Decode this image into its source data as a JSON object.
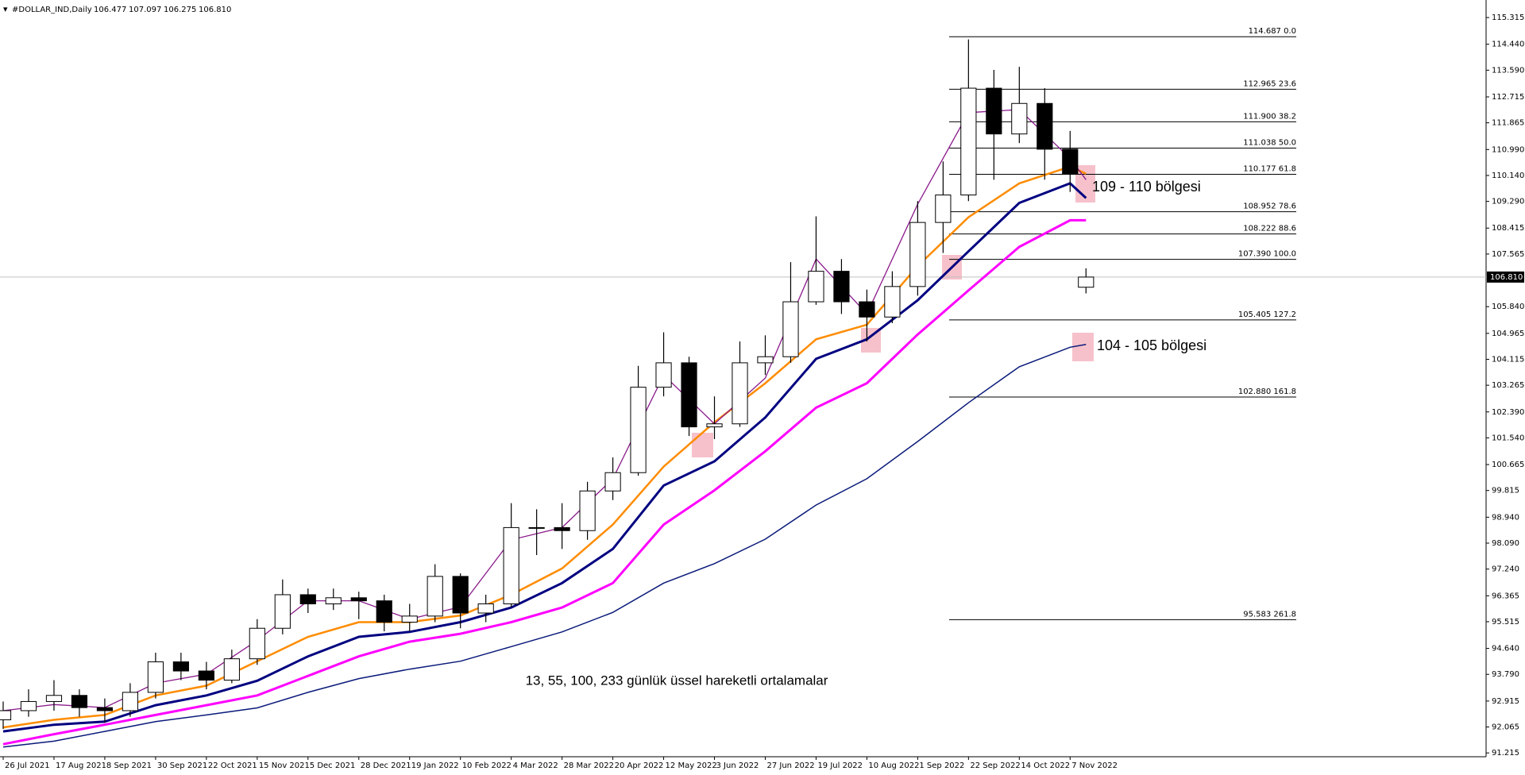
{
  "chart_data": {
    "type": "candlestick",
    "header": {
      "symbol": "#DOLLAR_IND,Daily",
      "values": [
        "106.477",
        "107.097",
        "106.275",
        "106.810"
      ]
    },
    "xlim": [
      -1,
      467
    ],
    "ylim": [
      91.09,
      115.89
    ],
    "xticks": [
      {
        "value": 0,
        "label": "26 Jul 2021"
      },
      {
        "value": 16,
        "label": "17 Aug 2021"
      },
      {
        "value": 32,
        "label": "8 Sep 2021"
      },
      {
        "value": 48,
        "label": "30 Sep 2021"
      },
      {
        "value": 64,
        "label": "22 Oct 2021"
      },
      {
        "value": 80,
        "label": "15 Nov 2021"
      },
      {
        "value": 96,
        "label": "5 Dec 2021"
      },
      {
        "value": 112,
        "label": "28 Dec 2021"
      },
      {
        "value": 128,
        "label": "19 Jan 2022"
      },
      {
        "value": 144,
        "label": "10 Feb 2022"
      },
      {
        "value": 160,
        "label": "4 Mar 2022"
      },
      {
        "value": 176,
        "label": "28 Mar 2022"
      },
      {
        "value": 192,
        "label": "20 Apr 2022"
      },
      {
        "value": 208,
        "label": "12 May 2022"
      },
      {
        "value": 224,
        "label": "3 Jun 2022"
      },
      {
        "value": 240,
        "label": "27 Jun 2022"
      },
      {
        "value": 256,
        "label": "19 Jul 2022"
      },
      {
        "value": 272,
        "label": "10 Aug 2022"
      },
      {
        "value": 288,
        "label": "1 Sep 2022"
      },
      {
        "value": 304,
        "label": "22 Sep 2022"
      },
      {
        "value": 320,
        "label": "14 Oct 2022"
      },
      {
        "value": 336,
        "label": "7 Nov 2022"
      }
    ],
    "yticks": [
      115.315,
      {
        "value": 114.44,
        "label": "114.440"
      },
      {
        "value": 113.59,
        "label": "113.590"
      },
      112.715,
      111.865,
      {
        "value": 110.99,
        "label": "110.990"
      },
      {
        "value": 110.14,
        "label": "110.140"
      },
      {
        "value": 109.29,
        "label": "109.290"
      },
      108.415,
      107.565,
      {
        "value": 105.84,
        "label": "105.840"
      },
      104.965,
      104.115,
      103.265,
      {
        "value": 102.39,
        "label": "102.390"
      },
      {
        "value": 101.54,
        "label": "101.540"
      },
      100.665,
      99.815,
      {
        "value": 98.94,
        "label": "98.940"
      },
      {
        "value": 98.09,
        "label": "98.090"
      },
      {
        "value": 97.24,
        "label": "97.240"
      },
      96.365,
      95.515,
      {
        "value": 94.64,
        "label": "94.640"
      },
      {
        "value": 93.79,
        "label": "93.790"
      },
      92.915,
      92.065,
      91.215
    ],
    "current_price": {
      "value": 106.81,
      "label": "106.810"
    },
    "candles": {
      "up_color": "#ffffff",
      "down_color": "#000000",
      "x": [
        0,
        8,
        16,
        24,
        32,
        40,
        48,
        56,
        64,
        72,
        80,
        88,
        96,
        104,
        112,
        120,
        128,
        136,
        144,
        152,
        160,
        168,
        176,
        184,
        192,
        200,
        208,
        216,
        224,
        232,
        240,
        248,
        256,
        264,
        272,
        280,
        288,
        296,
        304,
        312,
        320,
        328,
        336,
        341
      ],
      "open": [
        92.3,
        92.6,
        92.9,
        93.1,
        92.7,
        92.6,
        93.2,
        94.2,
        93.9,
        93.6,
        94.3,
        95.3,
        96.4,
        96.1,
        96.3,
        96.2,
        95.5,
        95.7,
        97.0,
        95.8,
        96.1,
        98.6,
        98.6,
        98.5,
        99.8,
        100.4,
        103.2,
        104.0,
        101.9,
        102.0,
        104.0,
        104.2,
        106.0,
        107.0,
        106.0,
        105.5,
        106.5,
        108.6,
        109.5,
        113.0,
        111.5,
        112.5,
        111.0,
        106.477
      ],
      "high": [
        92.9,
        93.3,
        93.6,
        93.3,
        93.0,
        93.5,
        94.5,
        94.5,
        94.2,
        94.6,
        95.6,
        96.9,
        96.6,
        96.6,
        96.5,
        96.4,
        96.1,
        97.4,
        97.1,
        96.4,
        99.4,
        99.2,
        99.4,
        100.1,
        100.9,
        103.9,
        105.0,
        104.2,
        102.9,
        104.7,
        104.9,
        107.3,
        108.8,
        107.4,
        106.4,
        107.0,
        109.3,
        110.6,
        114.6,
        113.6,
        113.7,
        113.0,
        111.6,
        107.097
      ],
      "low": [
        92.0,
        92.4,
        92.6,
        92.4,
        92.2,
        92.4,
        93.0,
        93.6,
        93.3,
        93.5,
        94.1,
        95.1,
        95.8,
        95.9,
        95.6,
        95.2,
        95.2,
        95.5,
        95.3,
        95.5,
        96.0,
        97.7,
        97.9,
        98.2,
        99.5,
        100.3,
        102.9,
        101.6,
        101.5,
        101.9,
        103.6,
        104.0,
        105.9,
        105.6,
        104.7,
        105.3,
        106.2,
        107.6,
        109.3,
        110.0,
        111.2,
        110.0,
        109.6,
        106.275
      ],
      "close": [
        92.6,
        92.9,
        93.1,
        92.7,
        92.6,
        93.2,
        94.2,
        93.9,
        93.6,
        94.3,
        95.3,
        96.4,
        96.1,
        96.3,
        96.2,
        95.5,
        95.7,
        97.0,
        95.8,
        96.1,
        98.6,
        98.6,
        98.5,
        99.8,
        100.4,
        103.2,
        104.0,
        101.9,
        102.0,
        104.0,
        104.2,
        106.0,
        107.0,
        106.0,
        105.5,
        106.5,
        108.6,
        109.5,
        113.0,
        111.5,
        112.5,
        111.0,
        110.2,
        106.81
      ]
    },
    "series": [
      {
        "color": "#0a1a7a",
        "x": [
          0,
          16,
          32,
          48,
          64,
          80,
          96,
          112,
          128,
          144,
          160,
          176,
          192,
          208,
          224,
          240,
          256,
          272,
          288,
          304,
          320,
          336,
          341
        ],
        "values": [
          91.41,
          91.6,
          91.92,
          92.24,
          92.46,
          92.69,
          93.2,
          93.65,
          93.96,
          94.22,
          94.7,
          95.18,
          95.82,
          96.78,
          97.42,
          98.22,
          99.34,
          100.2,
          101.42,
          102.69,
          103.87,
          104.51,
          104.6
        ]
      },
      {
        "color": "#ff00ff",
        "x": [
          0,
          16,
          32,
          48,
          64,
          80,
          96,
          112,
          128,
          144,
          160,
          176,
          192,
          208,
          224,
          240,
          256,
          272,
          288,
          304,
          320,
          336,
          341
        ],
        "values": [
          91.5,
          91.83,
          92.14,
          92.46,
          92.78,
          93.1,
          93.74,
          94.38,
          94.86,
          95.12,
          95.5,
          95.98,
          96.78,
          98.7,
          99.82,
          101.1,
          102.53,
          103.33,
          104.93,
          106.37,
          107.8,
          108.67,
          108.67
        ]
      },
      {
        "color": "#000080",
        "x": [
          0,
          16,
          32,
          48,
          64,
          80,
          96,
          112,
          128,
          144,
          160,
          176,
          192,
          208,
          224,
          240,
          256,
          272,
          288,
          304,
          320,
          336,
          341
        ],
        "values": [
          91.92,
          92.14,
          92.24,
          92.78,
          93.1,
          93.58,
          94.38,
          95.02,
          95.18,
          95.5,
          95.98,
          96.78,
          97.9,
          99.98,
          100.77,
          102.21,
          104.13,
          104.77,
          106.05,
          107.65,
          109.24,
          109.88,
          109.4
        ]
      },
      {
        "color": "#ff8c00",
        "x": [
          0,
          16,
          32,
          48,
          64,
          80,
          96,
          112,
          128,
          144,
          160,
          176,
          192,
          208,
          224,
          240,
          256,
          272,
          288,
          304,
          320,
          336,
          341
        ],
        "values": [
          92.05,
          92.3,
          92.46,
          93.1,
          93.42,
          94.22,
          95.02,
          95.5,
          95.5,
          95.72,
          96.4,
          97.26,
          98.7,
          100.6,
          102.05,
          103.33,
          104.77,
          105.25,
          107.17,
          108.77,
          109.88,
          110.43,
          110.2
        ]
      },
      {
        "color": "#8b1a8b",
        "x": [
          0,
          16,
          32,
          48,
          64,
          80,
          96,
          112,
          128,
          144,
          160,
          176,
          192,
          208,
          224,
          240,
          256,
          272,
          288,
          304,
          320,
          336,
          341
        ],
        "values": [
          92.6,
          92.8,
          92.7,
          93.5,
          93.8,
          94.9,
          96.2,
          96.2,
          95.6,
          96.0,
          98.2,
          98.6,
          100.2,
          103.6,
          102.0,
          103.5,
          107.4,
          105.6,
          109.2,
          112.2,
          112.3,
          110.7,
          110.0
        ]
      }
    ],
    "fib_levels": [
      {
        "value": 114.687,
        "label": "114.687 0.0"
      },
      {
        "value": 112.965,
        "label": "112.965 23.6"
      },
      {
        "value": 111.9,
        "label": "111.900 38.2"
      },
      {
        "value": 111.038,
        "label": "111.038 50.0"
      },
      {
        "value": 110.177,
        "label": "110.177 61.8"
      },
      {
        "value": 108.952,
        "label": "108.952 78.6"
      },
      {
        "value": 108.222,
        "label": "108.222 88.6"
      },
      {
        "value": 107.39,
        "label": "107.390 100.0"
      },
      {
        "value": 105.405,
        "label": "105.405 127.2"
      },
      {
        "value": 102.88,
        "label": "102.880 161.8"
      },
      {
        "value": 95.583,
        "label": "95.583 261.8"
      }
    ],
    "annotations": [
      "109 - 110  bölgesi",
      "104 - 105 bölgesi",
      "13, 55, 100, 233 günlük üssel hareketli ortalamalar"
    ]
  }
}
